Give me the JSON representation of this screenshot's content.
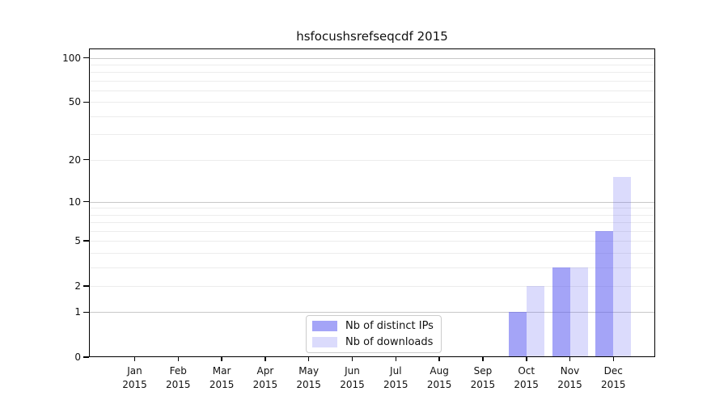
{
  "chart_data": {
    "type": "bar",
    "title": "hsfocushsrefseqcdf 2015",
    "x_tick_labels": [
      "Jan 2015",
      "Feb 2015",
      "Mar 2015",
      "Apr 2015",
      "May 2015",
      "Jun 2015",
      "Jul 2015",
      "Aug 2015",
      "Sep 2015",
      "Oct 2015",
      "Nov 2015",
      "Dec 2015"
    ],
    "series": [
      {
        "name": "Nb of distinct IPs",
        "color": "rgba(90,90,240,0.55)",
        "color_hex_on_white": "#a7a7f6",
        "values": [
          0,
          0,
          0,
          0,
          0,
          0,
          0,
          0,
          0,
          1,
          3,
          6
        ]
      },
      {
        "name": "Nb of downloads",
        "color": "rgba(90,90,240,0.22)",
        "color_hex_on_white": "#dcdcf9",
        "values": [
          0,
          0,
          0,
          0,
          0,
          0,
          0,
          0,
          0,
          2,
          3,
          15
        ]
      }
    ],
    "y_axis": {
      "scale": "log1p",
      "ticks": [
        100,
        50,
        20,
        10,
        5,
        2,
        1,
        0
      ],
      "major_gridlines": [
        1,
        10,
        100
      ],
      "minor_gridlines": [
        2,
        3,
        4,
        5,
        6,
        7,
        8,
        9,
        20,
        30,
        40,
        50,
        60,
        70,
        80,
        90
      ],
      "ylim": [
        0,
        115.5
      ],
      "major_grid_color": "#c8c8c8",
      "minor_grid_color": "#ececec"
    },
    "legend": {
      "position": "lower-center-left inside plot",
      "entries": [
        "Nb of distinct IPs",
        "Nb of downloads"
      ]
    },
    "grid": true,
    "background": "#ffffff"
  }
}
